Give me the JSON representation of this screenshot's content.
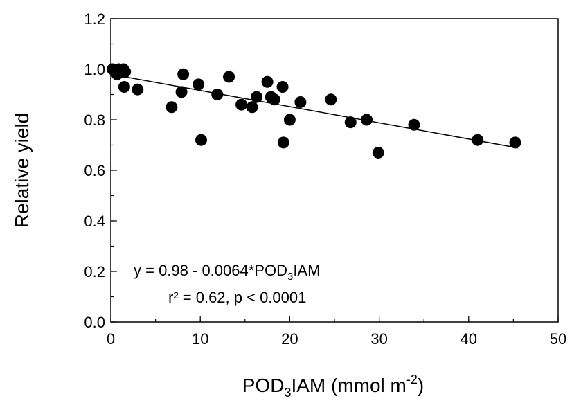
{
  "chart_data": {
    "type": "scatter",
    "xlabel": {
      "main": "POD",
      "sub": "3",
      "rest": "IAM (mmol m",
      "sup": "-2",
      "end": ")"
    },
    "ylabel": "Relative yield",
    "xlim": [
      0,
      50
    ],
    "ylim": [
      0,
      1.2
    ],
    "x_ticks": [
      0,
      10,
      20,
      30,
      40,
      50
    ],
    "x_minor_step": 5,
    "y_ticks": [
      0.0,
      0.2,
      0.4,
      0.6,
      0.8,
      1.0,
      1.2
    ],
    "y_tick_labels": [
      "0.0",
      "0.2",
      "0.4",
      "0.6",
      "0.8",
      "1.0",
      "1.2"
    ],
    "y_minor_step": 0.1,
    "grid": false,
    "legend": "none",
    "point_color": "#000000",
    "points": [
      {
        "x": 0.2,
        "y": 1.0
      },
      {
        "x": 0.7,
        "y": 0.98
      },
      {
        "x": 0.9,
        "y": 1.0
      },
      {
        "x": 1.2,
        "y": 0.99
      },
      {
        "x": 1.4,
        "y": 1.0
      },
      {
        "x": 1.6,
        "y": 0.99
      },
      {
        "x": 1.5,
        "y": 0.93
      },
      {
        "x": 3.0,
        "y": 0.92
      },
      {
        "x": 6.8,
        "y": 0.85
      },
      {
        "x": 7.9,
        "y": 0.91
      },
      {
        "x": 8.1,
        "y": 0.98
      },
      {
        "x": 9.8,
        "y": 0.94
      },
      {
        "x": 10.1,
        "y": 0.72
      },
      {
        "x": 11.9,
        "y": 0.9
      },
      {
        "x": 13.2,
        "y": 0.97
      },
      {
        "x": 14.6,
        "y": 0.86
      },
      {
        "x": 15.8,
        "y": 0.85
      },
      {
        "x": 16.3,
        "y": 0.89
      },
      {
        "x": 17.5,
        "y": 0.95
      },
      {
        "x": 17.9,
        "y": 0.89
      },
      {
        "x": 18.3,
        "y": 0.88
      },
      {
        "x": 19.2,
        "y": 0.93
      },
      {
        "x": 19.3,
        "y": 0.71
      },
      {
        "x": 20.0,
        "y": 0.8
      },
      {
        "x": 21.2,
        "y": 0.87
      },
      {
        "x": 24.6,
        "y": 0.88
      },
      {
        "x": 26.8,
        "y": 0.79
      },
      {
        "x": 28.6,
        "y": 0.8
      },
      {
        "x": 29.9,
        "y": 0.67
      },
      {
        "x": 33.9,
        "y": 0.78
      },
      {
        "x": 41.0,
        "y": 0.72
      },
      {
        "x": 45.2,
        "y": 0.71
      }
    ],
    "regression": {
      "intercept": 0.98,
      "slope": -0.0064,
      "x_range": [
        0,
        45.5
      ]
    },
    "annotation": {
      "eq_pre": "y = 0.98 - 0.0064*POD",
      "eq_sub": "3",
      "eq_post": "IAM",
      "stats": "r² = 0.62, p < 0.0001"
    }
  }
}
